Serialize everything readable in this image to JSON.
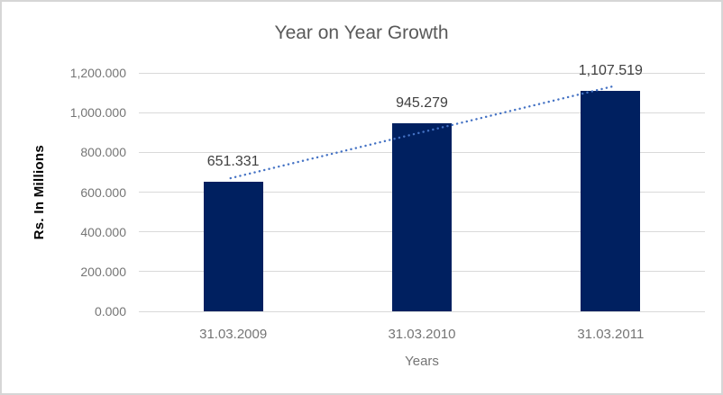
{
  "chart_data": {
    "type": "bar",
    "title": "Year on Year Growth",
    "xlabel": "Years",
    "ylabel": "Rs. In Millions",
    "categories": [
      "31.03.2009",
      "31.03.2010",
      "31.03.2011"
    ],
    "values": [
      651.331,
      945.279,
      1107.519
    ],
    "data_labels": [
      "651.331",
      "945.279",
      "1,107.519"
    ],
    "ylim": [
      0,
      1200
    ],
    "ytick_step": 200,
    "ytick_labels": [
      "0.000",
      "200.000",
      "400.000",
      "600.000",
      "800.000",
      "1,000.000",
      "1,200.000"
    ],
    "grid": true,
    "legend": "none",
    "trendline": {
      "type": "linear",
      "dash": "dotted"
    },
    "colors": {
      "bar": "#002060",
      "trendline": "#4472C4",
      "gridline": "#D9D9D9",
      "title_text": "#595959",
      "axis_text": "#757575",
      "data_label_text": "#404040",
      "frame_border": "#D6D6D6",
      "background": "#FFFFFF"
    }
  }
}
